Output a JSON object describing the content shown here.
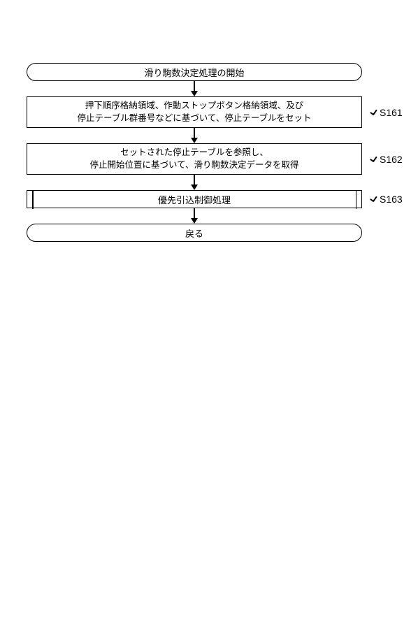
{
  "flowchart": {
    "type": "flowchart",
    "stroke_color": "#000000",
    "background_color": "#ffffff",
    "font_size_main": 13,
    "font_size_process": 12.5,
    "steps": [
      {
        "id": "start",
        "shape": "terminal",
        "text": "滑り駒数決定処理の開始",
        "label": ""
      },
      {
        "id": "s161",
        "shape": "process",
        "line1": "押下順序格納領域、作動ストップボタン格納領域、及び",
        "line2": "停止テーブル群番号などに基づいて、停止テーブルをセット",
        "label": "S161"
      },
      {
        "id": "s162",
        "shape": "process",
        "line1": "セットされた停止テーブルを参照し、",
        "line2": "停止開始位置に基づいて、滑り駒数決定データを取得",
        "label": "S162"
      },
      {
        "id": "s163",
        "shape": "subprocess",
        "text": "優先引込制御処理",
        "label": "S163"
      },
      {
        "id": "end",
        "shape": "terminal",
        "text": "戻る",
        "label": ""
      }
    ]
  }
}
